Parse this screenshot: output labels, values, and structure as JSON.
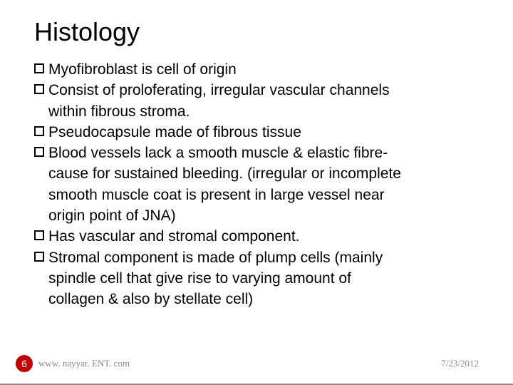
{
  "title": "Histology",
  "bullets": [
    {
      "lead": "Myofibroblast  is cell of origin",
      "cont": []
    },
    {
      "lead": "Consist of proloferating, irregular vascular channels",
      "cont": [
        "within fibrous stroma."
      ]
    },
    {
      "lead": "Pseudocapsule made of fibrous tissue",
      "cont": []
    },
    {
      "lead": "Blood vessels lack a smooth muscle & elastic fibre-",
      "cont": [
        "cause for sustained bleeding. (irregular or incomplete",
        "smooth muscle coat is present in large vessel near",
        "origin point of JNA)"
      ]
    },
    {
      "lead": "Has vascular and stromal component.",
      "cont": []
    },
    {
      "lead": "Stromal component is made of plump cells (mainly",
      "cont": [
        "spindle cell that give rise to varying amount of",
        "collagen & also by stellate cell)"
      ]
    }
  ],
  "page_number": "6",
  "footer_url": "www. nayyar. ENT. com",
  "footer_date": "7/23/2012",
  "colors": {
    "badge_bg": "#c00000",
    "badge_text": "#ffffff",
    "footer_text": "#888888",
    "title_text": "#000000",
    "body_text": "#000000"
  }
}
